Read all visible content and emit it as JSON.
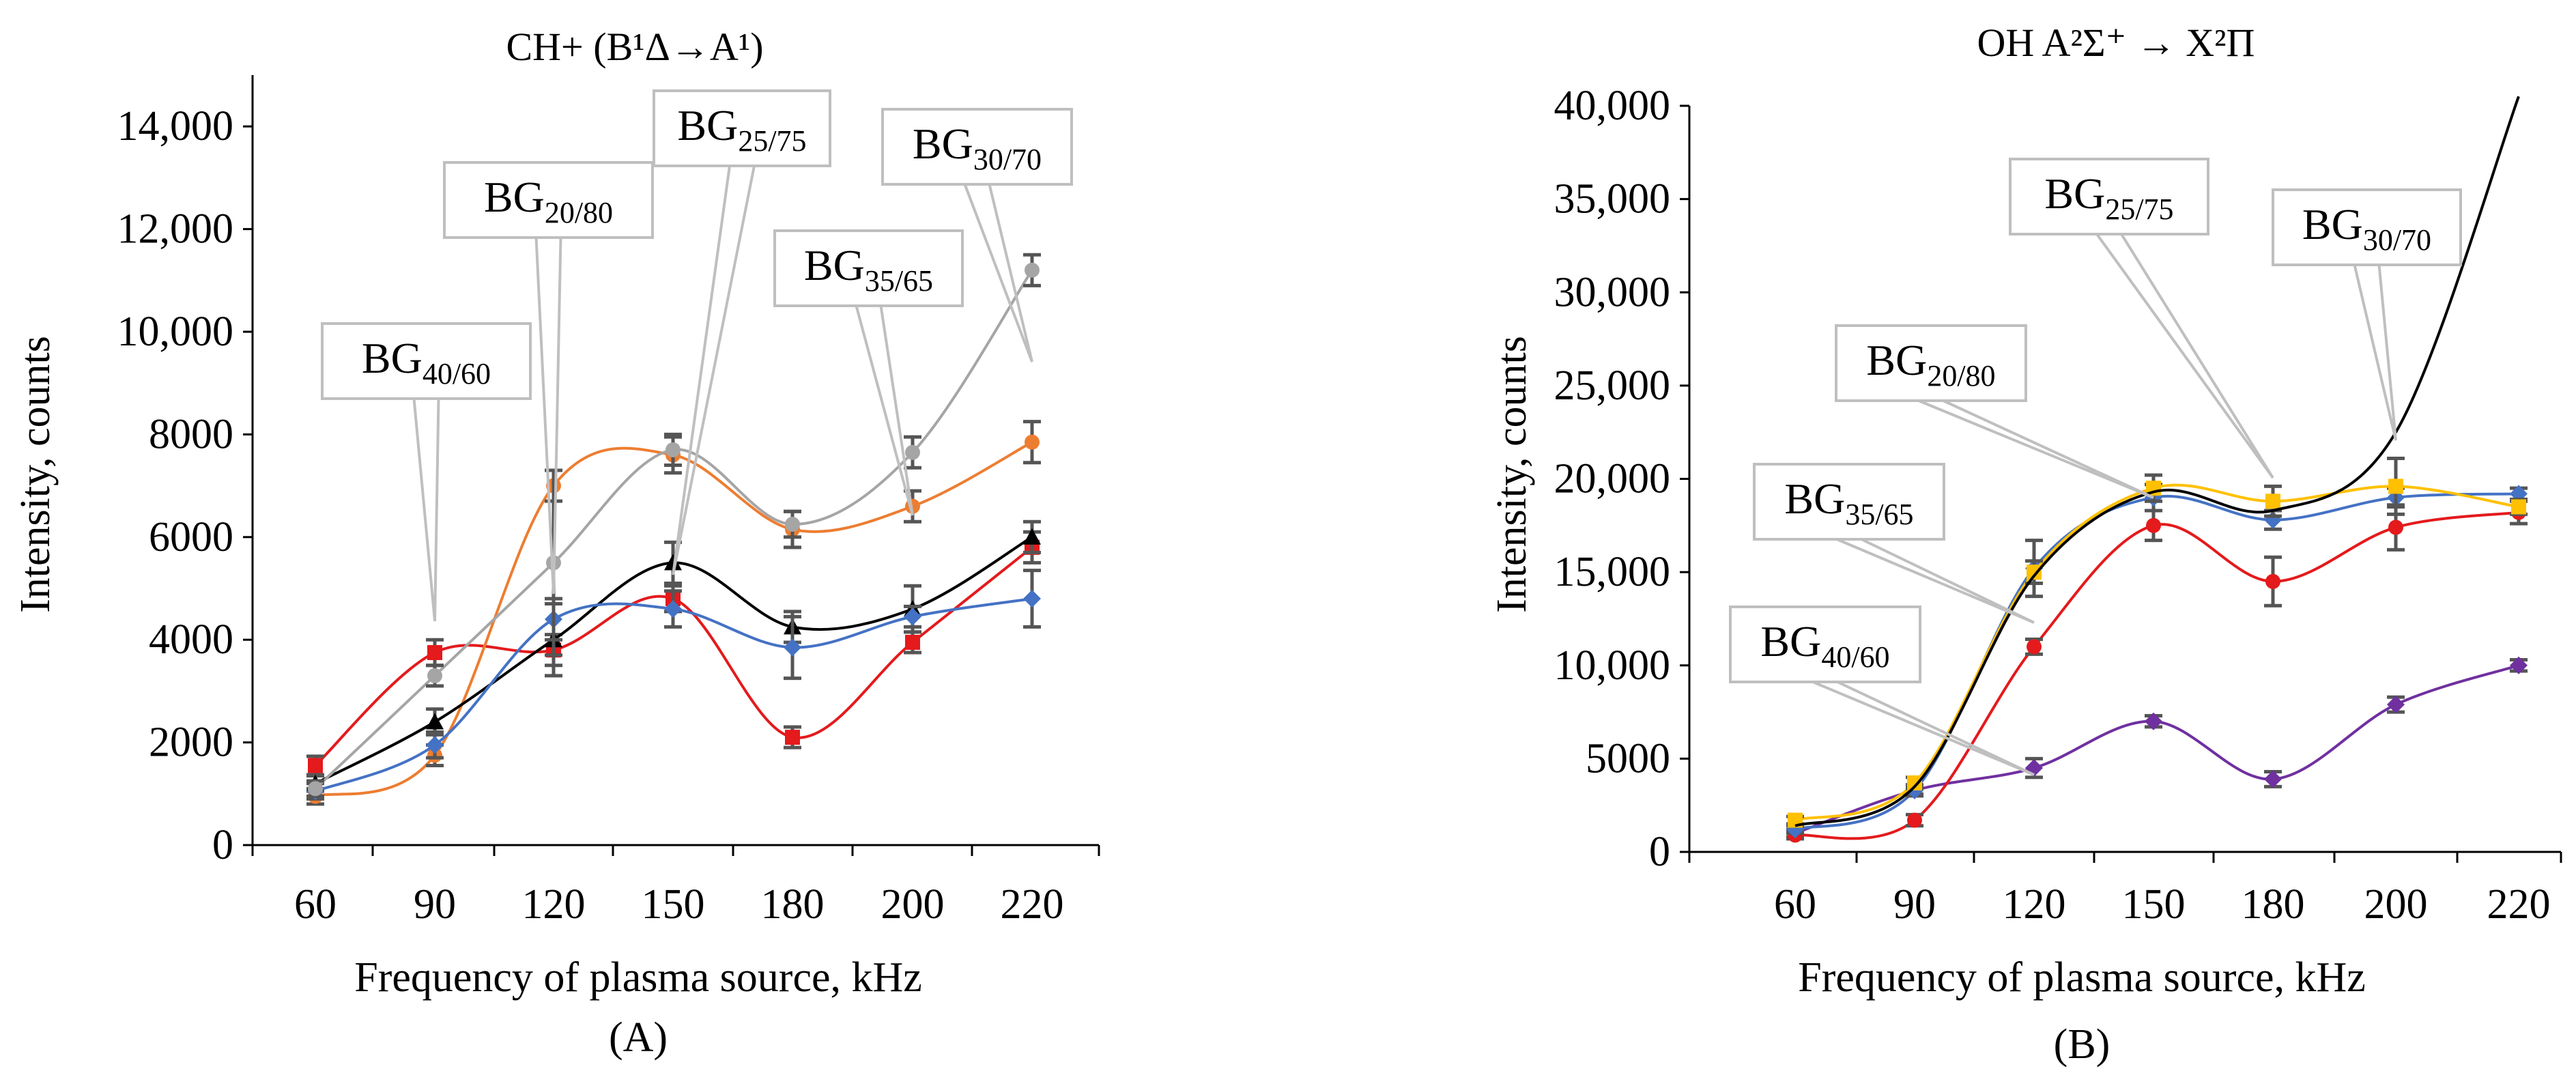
{
  "chart_data": [
    {
      "id": "A",
      "type": "line",
      "title": "CH+ (B¹Δ→A¹)",
      "panel_label": "(A)",
      "xlabel": "Frequency of plasma source, kHz",
      "ylabel": "Intensity, counts",
      "categories": [
        "60",
        "90",
        "120",
        "150",
        "180",
        "200",
        "220"
      ],
      "ylim": [
        0,
        15000
      ],
      "yticks": [
        0,
        2000,
        4000,
        6000,
        8000,
        10000,
        12000,
        14000
      ],
      "ytick_labels": [
        "0",
        "2000",
        "4000",
        "6000",
        "8000",
        "10,000",
        "12,000",
        "14,000"
      ],
      "series": [
        {
          "name": "BG40/60",
          "color": "#e41a1c",
          "marker": "square",
          "values": [
            1550,
            3750,
            3800,
            4800,
            2100,
            3950,
            5800
          ],
          "errors": [
            180,
            250,
            300,
            250,
            200,
            200,
            300
          ]
        },
        {
          "name": "BG20/80",
          "color": "#ed7d31",
          "marker": "circle",
          "values": [
            950,
            1750,
            7000,
            7600,
            6150,
            6600,
            7850
          ],
          "errors": [
            150,
            200,
            300,
            350,
            350,
            300,
            400
          ]
        },
        {
          "name": "BG25/75",
          "color": "#000000",
          "marker": "triangle",
          "values": [
            1200,
            2400,
            4000,
            5500,
            4250,
            4600,
            6000
          ],
          "errors": [
            150,
            250,
            700,
            400,
            300,
            450,
            300
          ]
        },
        {
          "name": "BG35/65",
          "color": "#4472c4",
          "marker": "diamond",
          "values": [
            1050,
            1950,
            4400,
            4600,
            3850,
            4450,
            4800
          ],
          "errors": [
            150,
            250,
            400,
            350,
            600,
            200,
            550
          ]
        },
        {
          "name": "BG30/70",
          "color": "#a5a5a5",
          "marker": "circle",
          "values": [
            1100,
            3300,
            5500,
            7700,
            6250,
            7650,
            11200
          ],
          "errors": [
            150,
            200,
            1800,
            300,
            250,
            300,
            300
          ]
        }
      ],
      "callouts": [
        {
          "series": "BG40/60",
          "base": "BG",
          "sub": "40/60"
        },
        {
          "series": "BG20/80",
          "base": "BG",
          "sub": "20/80"
        },
        {
          "series": "BG25/75",
          "base": "BG",
          "sub": "25/75"
        },
        {
          "series": "BG35/65",
          "base": "BG",
          "sub": "35/65"
        },
        {
          "series": "BG30/70",
          "base": "BG",
          "sub": "30/70"
        }
      ]
    },
    {
      "id": "B",
      "type": "line",
      "title": "OH A²Σ⁺ → X²Π",
      "panel_label": "(B)",
      "xlabel": "Frequency of plasma source, kHz",
      "ylabel": "Intensity, counts",
      "categories": [
        "60",
        "90",
        "120",
        "150",
        "180",
        "200",
        "220"
      ],
      "ylim": [
        0,
        40000
      ],
      "yticks": [
        0,
        5000,
        10000,
        15000,
        20000,
        25000,
        30000,
        35000,
        40000
      ],
      "ytick_labels": [
        "0",
        "5000",
        "10,000",
        "15,000",
        "20,000",
        "25,000",
        "30,000",
        "35,000",
        "40,000"
      ],
      "series": [
        {
          "name": "BG40/60",
          "color": "#7030a0",
          "marker": "diamond",
          "values": [
            1000,
            3300,
            4500,
            7000,
            3900,
            7900,
            10000
          ],
          "errors": [
            200,
            200,
            500,
            300,
            400,
            400,
            300
          ]
        },
        {
          "name": "BG35/65",
          "color": "#e41a1c",
          "marker": "circle",
          "values": [
            900,
            1700,
            11000,
            17500,
            14500,
            17400,
            18200
          ],
          "errors": [
            200,
            300,
            400,
            800,
            1300,
            1200,
            600
          ]
        },
        {
          "name": "BG20/80",
          "color": "#4472c4",
          "marker": "diamond",
          "values": [
            1200,
            3300,
            15200,
            19000,
            17800,
            19000,
            19200
          ],
          "errors": [
            200,
            300,
            1500,
            700,
            500,
            500,
            300
          ]
        },
        {
          "name": "BG25/75",
          "color": "#ffc000",
          "marker": "square",
          "values": [
            1700,
            3700,
            15000,
            19500,
            18800,
            19600,
            18500
          ],
          "errors": [
            200,
            300,
            600,
            700,
            800,
            1500,
            400
          ]
        },
        {
          "name": "BG30/70",
          "color": "#000000",
          "marker": "none",
          "values": [
            1400,
            3500,
            14800,
            19300,
            18300,
            22500,
            40500
          ],
          "errors": [
            0,
            0,
            0,
            0,
            0,
            0,
            0
          ]
        }
      ],
      "callouts": [
        {
          "series": "BG20/80",
          "base": "BG",
          "sub": "20/80"
        },
        {
          "series": "BG25/75",
          "base": "BG",
          "sub": "25/75"
        },
        {
          "series": "BG30/70",
          "base": "BG",
          "sub": "30/70"
        },
        {
          "series": "BG35/65",
          "base": "BG",
          "sub": "35/65"
        },
        {
          "series": "BG40/60",
          "base": "BG",
          "sub": "40/60"
        }
      ]
    }
  ]
}
